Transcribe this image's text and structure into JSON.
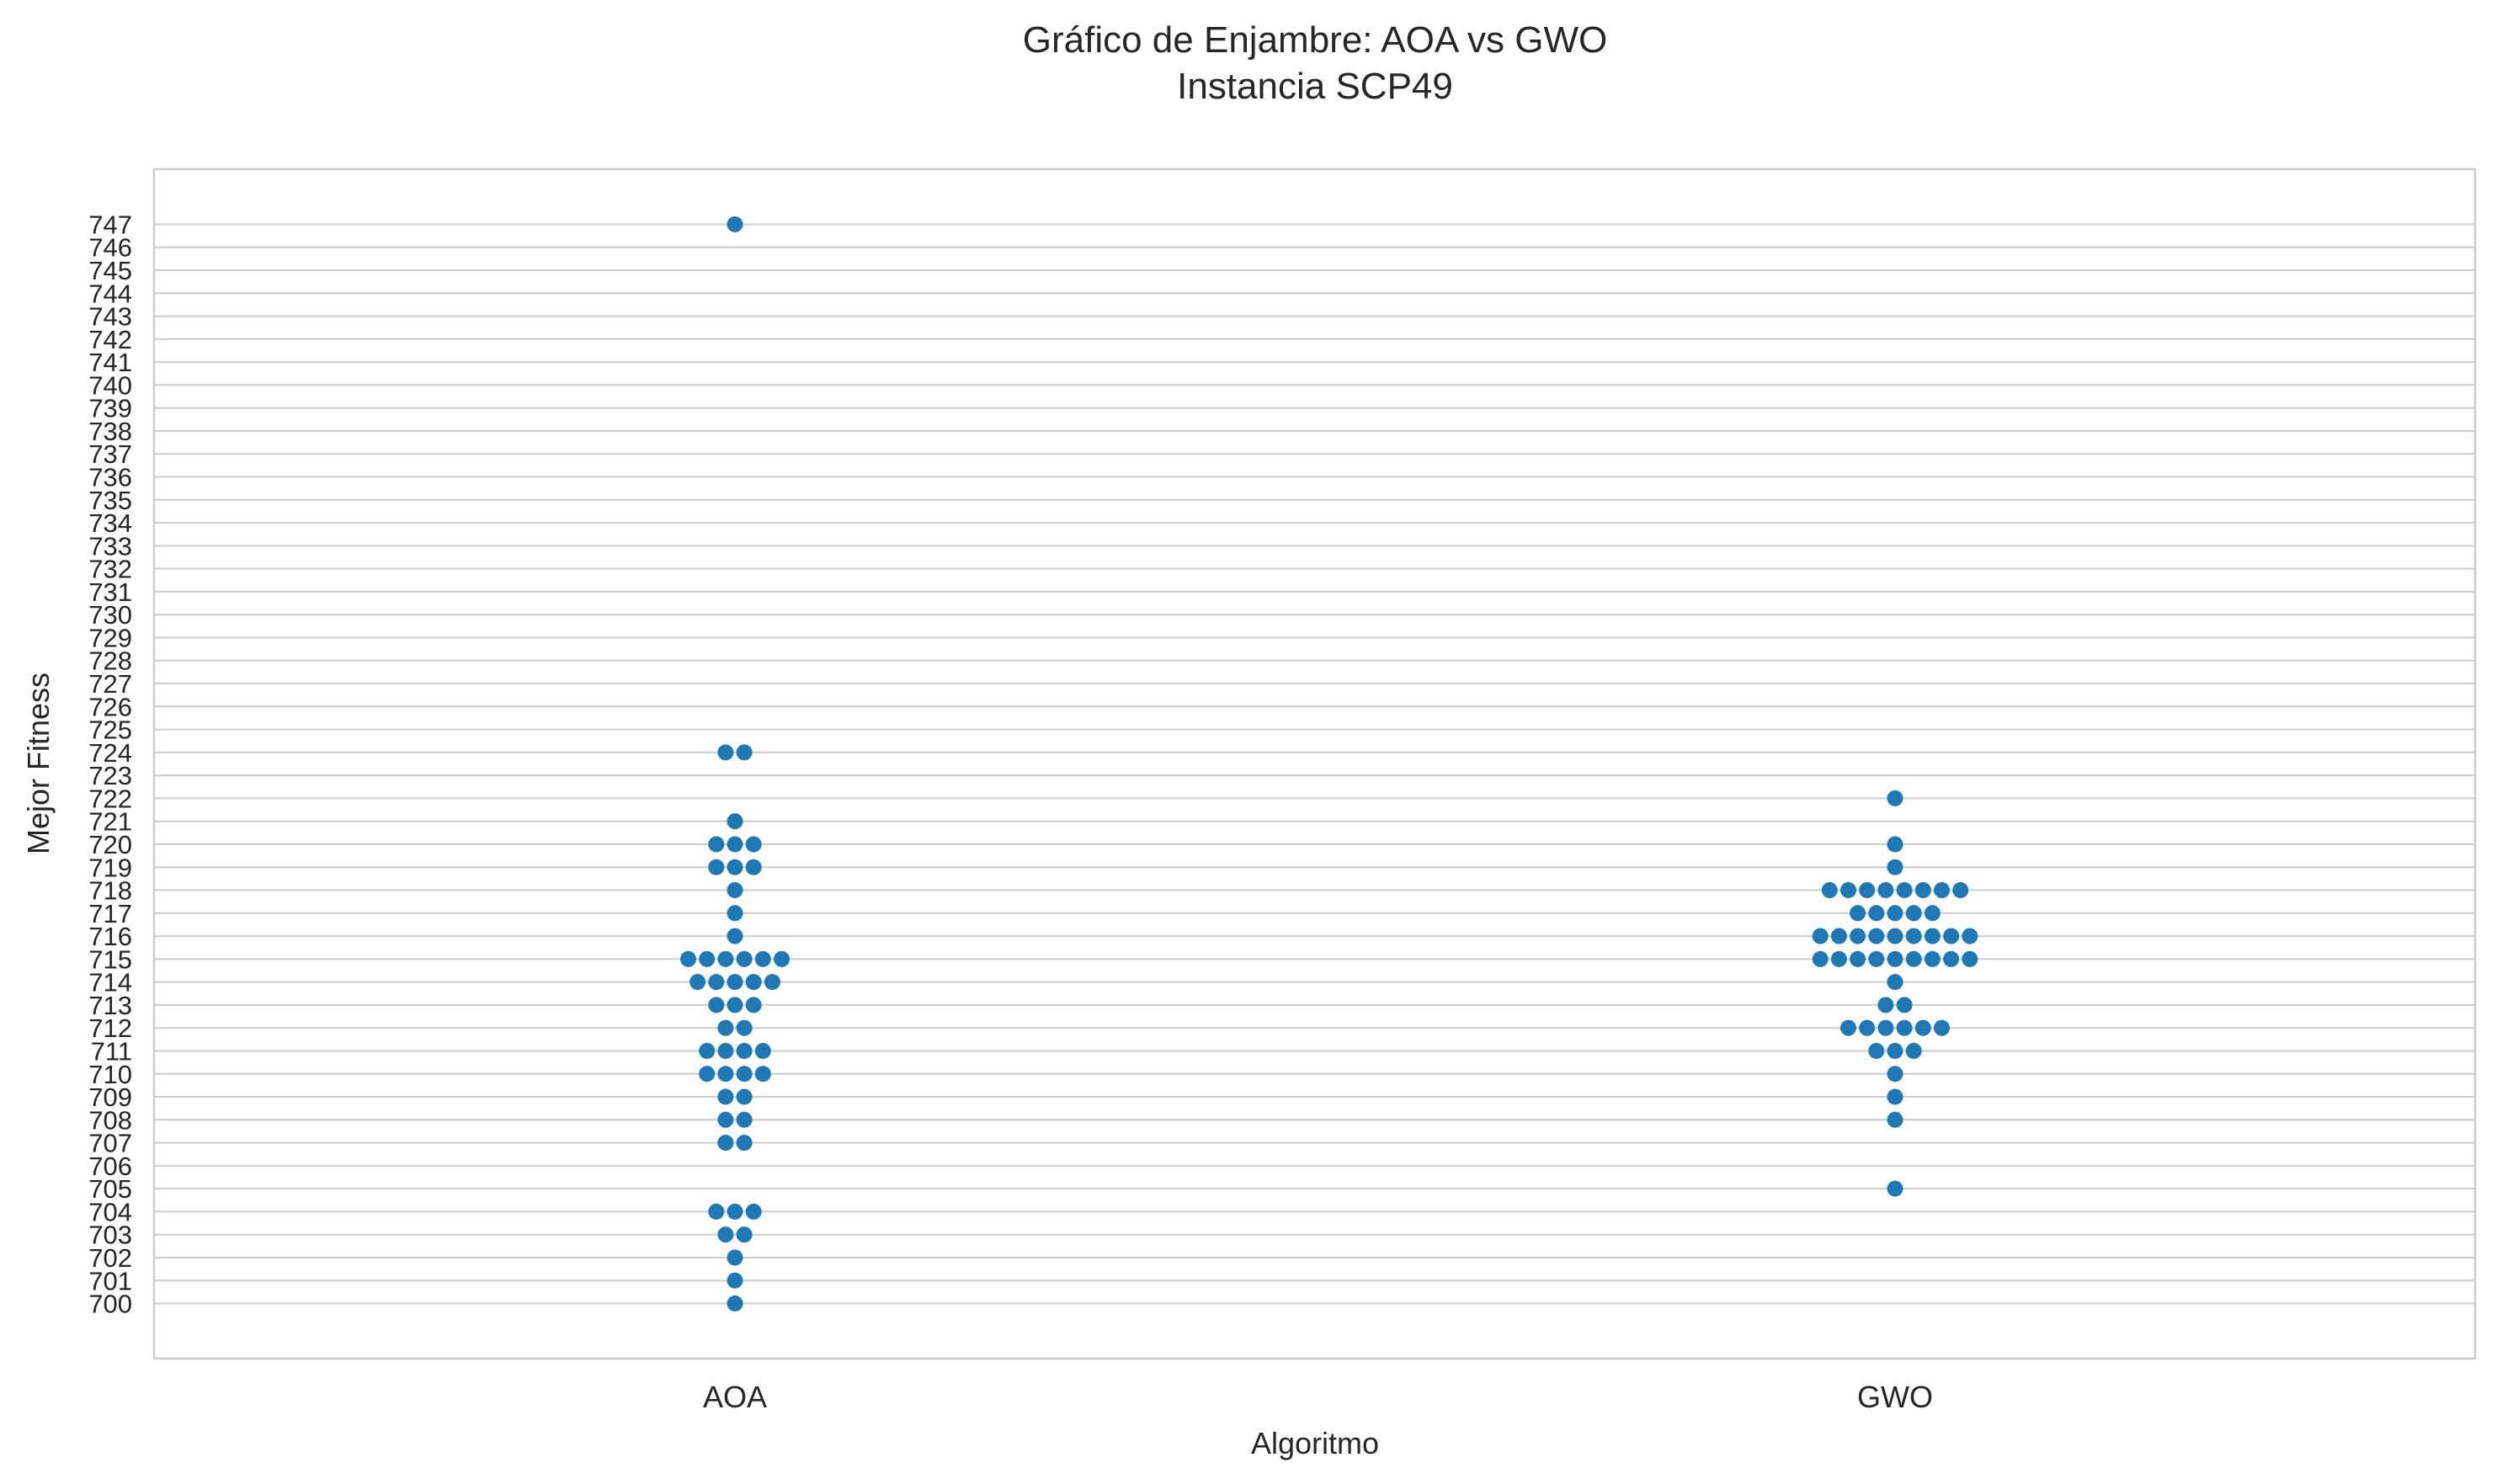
{
  "chart_data": {
    "type": "scatter",
    "subtype": "swarm",
    "title": "Gráfico de Enjambre: AOA vs GWO",
    "subtitle": "Instancia SCP49",
    "xlabel": "Algoritmo",
    "ylabel": "Mejor Fitness",
    "categories": [
      "AOA",
      "GWO"
    ],
    "ylim": [
      697.6,
      749.4
    ],
    "yticks": [
      700,
      701,
      702,
      703,
      704,
      705,
      706,
      707,
      708,
      709,
      710,
      711,
      712,
      713,
      714,
      715,
      716,
      717,
      718,
      719,
      720,
      721,
      722,
      723,
      724,
      725,
      726,
      727,
      728,
      729,
      730,
      731,
      732,
      733,
      734,
      735,
      736,
      737,
      738,
      739,
      740,
      741,
      742,
      743,
      744,
      745,
      746,
      747
    ],
    "grid": true,
    "grid_axis": "y",
    "marker_color": "#1f77b4",
    "series": [
      {
        "category": "AOA",
        "points": [
          {
            "y": 747,
            "count": 1
          },
          {
            "y": 724,
            "count": 2
          },
          {
            "y": 721,
            "count": 1
          },
          {
            "y": 720,
            "count": 3
          },
          {
            "y": 719,
            "count": 3
          },
          {
            "y": 718,
            "count": 1
          },
          {
            "y": 717,
            "count": 1
          },
          {
            "y": 716,
            "count": 1
          },
          {
            "y": 715,
            "count": 6
          },
          {
            "y": 714,
            "count": 5
          },
          {
            "y": 713,
            "count": 3
          },
          {
            "y": 712,
            "count": 2
          },
          {
            "y": 711,
            "count": 4
          },
          {
            "y": 710,
            "count": 4
          },
          {
            "y": 709,
            "count": 2
          },
          {
            "y": 708,
            "count": 2
          },
          {
            "y": 707,
            "count": 2
          },
          {
            "y": 704,
            "count": 3
          },
          {
            "y": 703,
            "count": 2
          },
          {
            "y": 702,
            "count": 1
          },
          {
            "y": 701,
            "count": 1
          },
          {
            "y": 700,
            "count": 1
          }
        ]
      },
      {
        "category": "GWO",
        "points": [
          {
            "y": 722,
            "count": 1
          },
          {
            "y": 720,
            "count": 1
          },
          {
            "y": 719,
            "count": 1
          },
          {
            "y": 718,
            "count": 8
          },
          {
            "y": 717,
            "count": 5
          },
          {
            "y": 716,
            "count": 9
          },
          {
            "y": 715,
            "count": 9
          },
          {
            "y": 714,
            "count": 1
          },
          {
            "y": 713,
            "count": 2
          },
          {
            "y": 712,
            "count": 6
          },
          {
            "y": 711,
            "count": 3
          },
          {
            "y": 710,
            "count": 1
          },
          {
            "y": 709,
            "count": 1
          },
          {
            "y": 708,
            "count": 1
          },
          {
            "y": 705,
            "count": 1
          }
        ]
      }
    ]
  }
}
